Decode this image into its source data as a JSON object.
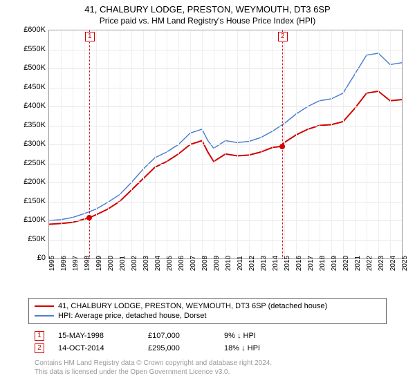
{
  "title": "41, CHALBURY LODGE, PRESTON, WEYMOUTH, DT3 6SP",
  "subtitle": "Price paid vs. HM Land Registry's House Price Index (HPI)",
  "chart": {
    "type": "line",
    "background_color": "#ffffff",
    "grid_color": "#e6e6e6",
    "y_axis": {
      "min": 0,
      "max": 600000,
      "step": 50000,
      "prefix": "£",
      "suffix": "K",
      "ticks": [
        "£0",
        "£50K",
        "£100K",
        "£150K",
        "£200K",
        "£250K",
        "£300K",
        "£350K",
        "£400K",
        "£450K",
        "£500K",
        "£550K",
        "£600K"
      ]
    },
    "x_axis": {
      "min": 1995,
      "max": 2025,
      "step": 1,
      "ticks": [
        "1995",
        "1996",
        "1997",
        "1998",
        "1999",
        "2000",
        "2001",
        "2002",
        "2003",
        "2004",
        "2005",
        "2006",
        "2007",
        "2008",
        "2009",
        "2010",
        "2011",
        "2012",
        "2013",
        "2014",
        "2015",
        "2016",
        "2017",
        "2018",
        "2019",
        "2020",
        "2021",
        "2022",
        "2023",
        "2024",
        "2025"
      ]
    },
    "series": [
      {
        "name": "property_price",
        "color": "#d10000",
        "line_width": 2,
        "points": [
          [
            1995,
            90000
          ],
          [
            1996,
            92000
          ],
          [
            1997,
            95000
          ],
          [
            1998.4,
            107000
          ],
          [
            1999,
            115000
          ],
          [
            2000,
            130000
          ],
          [
            2001,
            150000
          ],
          [
            2002,
            180000
          ],
          [
            2003,
            210000
          ],
          [
            2004,
            240000
          ],
          [
            2005,
            255000
          ],
          [
            2006,
            275000
          ],
          [
            2007,
            300000
          ],
          [
            2008,
            310000
          ],
          [
            2008.5,
            280000
          ],
          [
            2009,
            255000
          ],
          [
            2010,
            275000
          ],
          [
            2011,
            270000
          ],
          [
            2012,
            272000
          ],
          [
            2013,
            280000
          ],
          [
            2014,
            292000
          ],
          [
            2014.8,
            295000
          ],
          [
            2015,
            305000
          ],
          [
            2016,
            325000
          ],
          [
            2017,
            340000
          ],
          [
            2018,
            350000
          ],
          [
            2019,
            352000
          ],
          [
            2020,
            360000
          ],
          [
            2021,
            395000
          ],
          [
            2022,
            435000
          ],
          [
            2023,
            440000
          ],
          [
            2024,
            415000
          ],
          [
            2025,
            418000
          ]
        ]
      },
      {
        "name": "hpi_dorset",
        "color": "#4a7fd1",
        "line_width": 1.5,
        "points": [
          [
            1995,
            100000
          ],
          [
            1996,
            102000
          ],
          [
            1997,
            108000
          ],
          [
            1998,
            118000
          ],
          [
            1999,
            130000
          ],
          [
            2000,
            148000
          ],
          [
            2001,
            168000
          ],
          [
            2002,
            200000
          ],
          [
            2003,
            235000
          ],
          [
            2004,
            265000
          ],
          [
            2005,
            280000
          ],
          [
            2006,
            300000
          ],
          [
            2007,
            330000
          ],
          [
            2008,
            340000
          ],
          [
            2008.5,
            310000
          ],
          [
            2009,
            290000
          ],
          [
            2010,
            310000
          ],
          [
            2011,
            305000
          ],
          [
            2012,
            308000
          ],
          [
            2013,
            318000
          ],
          [
            2014,
            335000
          ],
          [
            2015,
            355000
          ],
          [
            2016,
            380000
          ],
          [
            2017,
            400000
          ],
          [
            2018,
            415000
          ],
          [
            2019,
            420000
          ],
          [
            2020,
            435000
          ],
          [
            2021,
            485000
          ],
          [
            2022,
            535000
          ],
          [
            2023,
            540000
          ],
          [
            2024,
            510000
          ],
          [
            2025,
            515000
          ]
        ]
      }
    ],
    "markers": [
      {
        "num": "1",
        "x": 1998.4,
        "y": 107000,
        "box_top": true,
        "color": "#d10000"
      },
      {
        "num": "2",
        "x": 2014.8,
        "y": 295000,
        "box_top": true,
        "color": "#d10000"
      }
    ]
  },
  "legend": {
    "items": [
      {
        "color": "#d10000",
        "label": "41, CHALBURY LODGE, PRESTON, WEYMOUTH, DT3 6SP (detached house)"
      },
      {
        "color": "#4a7fd1",
        "label": "HPI: Average price, detached house, Dorset"
      }
    ]
  },
  "sales": [
    {
      "num": "1",
      "color": "#d10000",
      "date": "15-MAY-1998",
      "price": "£107,000",
      "diff": "9% ↓ HPI"
    },
    {
      "num": "2",
      "color": "#d10000",
      "date": "14-OCT-2014",
      "price": "£295,000",
      "diff": "18% ↓ HPI"
    }
  ],
  "footer": {
    "line1": "Contains HM Land Registry data © Crown copyright and database right 2024.",
    "line2": "This data is licensed under the Open Government Licence v3.0."
  }
}
